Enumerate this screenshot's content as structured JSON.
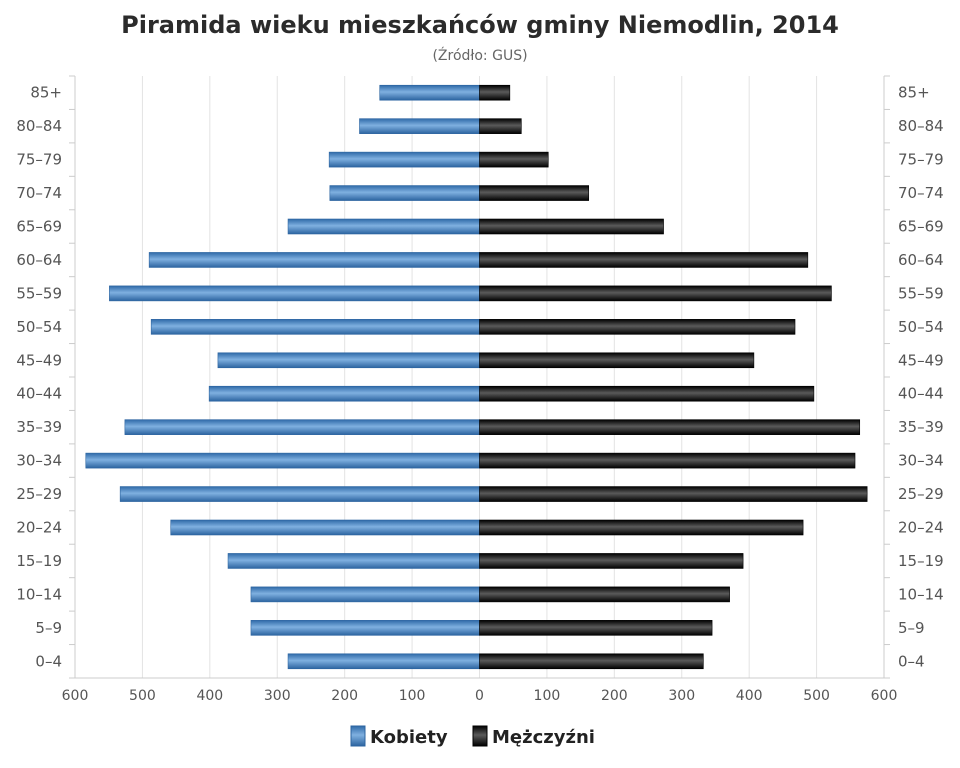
{
  "chart_data": {
    "type": "bar",
    "orientation": "horizontal",
    "layout": "population-pyramid",
    "title": "Piramida wieku mieszkańców gminy Niemodlin, 2014",
    "subtitle": "(Źródło: GUS)",
    "categories": [
      "0–4",
      "5–9",
      "10–14",
      "15–19",
      "20–24",
      "25–29",
      "30–34",
      "35–39",
      "40–44",
      "45–49",
      "50–54",
      "55–59",
      "60–64",
      "65–69",
      "70–74",
      "75–79",
      "80–84",
      "85+"
    ],
    "series": [
      {
        "name": "Kobiety",
        "side": "left",
        "color": "#4a86c6",
        "values": [
          284,
          339,
          339,
          373,
          458,
          533,
          584,
          526,
          401,
          388,
          487,
          549,
          490,
          284,
          222,
          223,
          178,
          148
        ]
      },
      {
        "name": "Mężczyźni",
        "side": "right",
        "color": "#1a1a1a",
        "values": [
          332,
          345,
          371,
          391,
          480,
          575,
          557,
          564,
          496,
          407,
          468,
          522,
          487,
          273,
          162,
          102,
          62,
          45
        ]
      }
    ],
    "x_ticks": [
      "600",
      "500",
      "400",
      "300",
      "200",
      "100",
      "0",
      "100",
      "200",
      "300",
      "400",
      "500",
      "600"
    ],
    "xlim": [
      -600,
      600
    ],
    "grid": true,
    "legend_position": "bottom-center"
  }
}
